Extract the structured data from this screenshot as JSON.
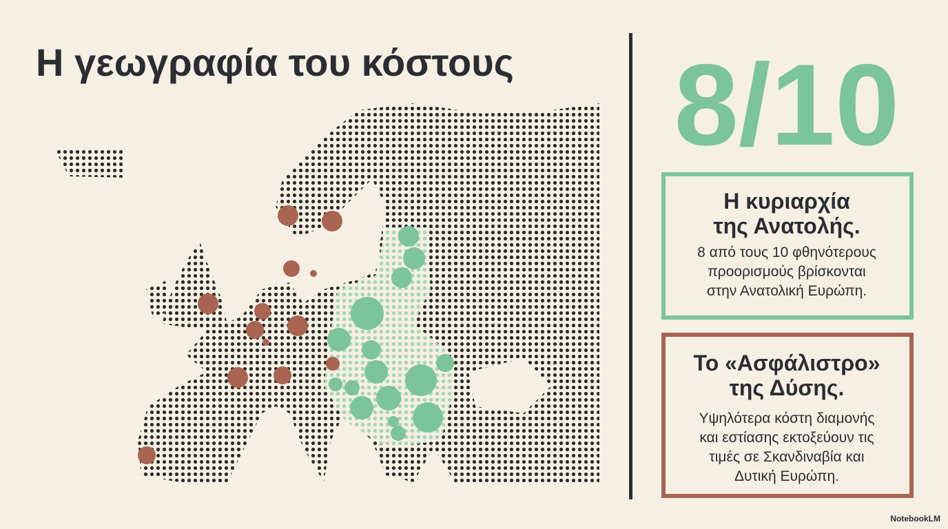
{
  "header": {
    "title": "Η γεωγραφία του κόστους"
  },
  "stat": {
    "value": "8/10"
  },
  "cards": [
    {
      "title_lines": [
        "Η κυριαρχία",
        "της Ανατολής."
      ],
      "body_lines": [
        "8 από τους 10 φθηνότερους",
        "προορισμούς βρίσκονται",
        "στην Ανατολική Ευρώπη."
      ]
    },
    {
      "title_lines": [
        "Το «Ασφάλιστρο»",
        "της Δύσης."
      ],
      "body_lines": [
        "Υψηλότερα κόστη διαμονής",
        "και εστίασης εκτοξεύουν τις",
        "τιμές σε Σκανδιναβία και",
        "Δυτική Ευρώπη."
      ]
    }
  ],
  "footer": {
    "brand": "NotebookLM"
  }
}
